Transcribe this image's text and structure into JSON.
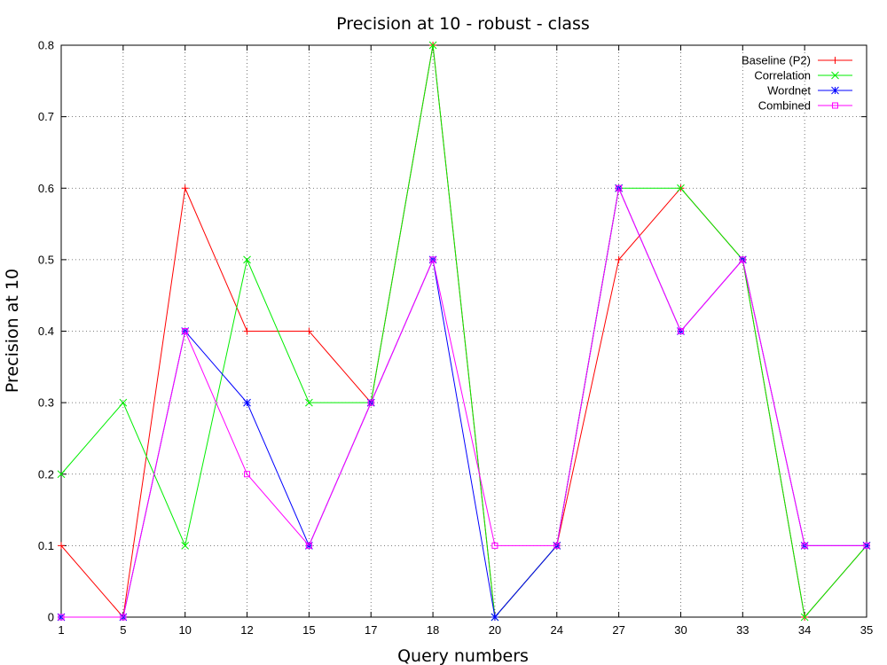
{
  "chart_data": {
    "type": "line",
    "title": "Precision at 10 - robust - class",
    "xlabel": "Query numbers",
    "ylabel": "Precision at 10",
    "categories": [
      "1",
      "5",
      "10",
      "12",
      "15",
      "17",
      "18",
      "20",
      "24",
      "27",
      "30",
      "33",
      "34",
      "35"
    ],
    "ylim": [
      0,
      0.8
    ],
    "yticks": [
      "0",
      "0.1",
      "0.2",
      "0.3",
      "0.4",
      "0.5",
      "0.6",
      "0.7",
      "0.8"
    ],
    "grid": true,
    "legend_position": "top-right",
    "series": [
      {
        "name": "Baseline (P2)",
        "color": "#ff0000",
        "marker": "plus",
        "values": [
          0.1,
          0,
          0.6,
          0.4,
          0.4,
          0.3,
          0.8,
          0,
          0.1,
          0.5,
          0.6,
          0.5,
          0,
          0.1
        ]
      },
      {
        "name": "Correlation",
        "color": "#00ee00",
        "marker": "cross",
        "values": [
          0.2,
          0.3,
          0.1,
          0.5,
          0.3,
          0.3,
          0.8,
          0,
          0.1,
          0.6,
          0.6,
          0.5,
          0,
          0.1
        ]
      },
      {
        "name": "Wordnet",
        "color": "#0000ff",
        "marker": "star",
        "values": [
          0,
          0,
          0.4,
          0.3,
          0.1,
          0.3,
          0.5,
          0,
          0.1,
          0.6,
          0.4,
          0.5,
          0.1,
          0.1
        ]
      },
      {
        "name": "Combined",
        "color": "#ff00ff",
        "marker": "square",
        "values": [
          0,
          0,
          0.4,
          0.2,
          0.1,
          0.3,
          0.5,
          0.1,
          0.1,
          0.6,
          0.4,
          0.5,
          0.1,
          0.1
        ]
      }
    ]
  }
}
